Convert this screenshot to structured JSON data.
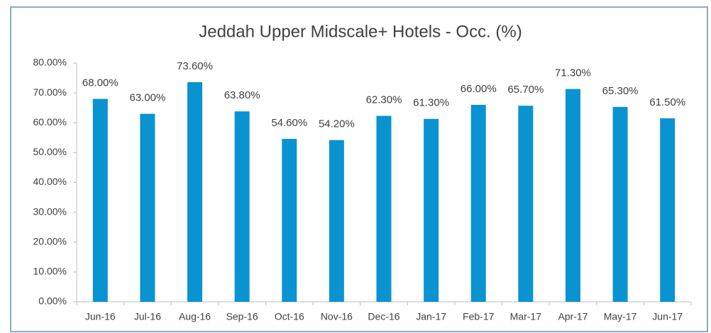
{
  "chart_data": {
    "type": "bar",
    "title": "Jeddah Upper Midscale+ Hotels  - Occ. (%)",
    "categories": [
      "Jun-16",
      "Jul-16",
      "Aug-16",
      "Sep-16",
      "Oct-16",
      "Nov-16",
      "Dec-16",
      "Jan-17",
      "Feb-17",
      "Mar-17",
      "Apr-17",
      "May-17",
      "Jun-17"
    ],
    "values": [
      68,
      63,
      73.6,
      63.8,
      54.6,
      54.2,
      62.3,
      61.3,
      66,
      65.7,
      71.3,
      65.3,
      61.5
    ],
    "value_labels": [
      "68.00%",
      "63.00%",
      "73.60%",
      "63.80%",
      "54.60%",
      "54.20%",
      "62.30%",
      "61.30%",
      "66.00%",
      "65.70%",
      "71.30%",
      "65.30%",
      "61.50%"
    ],
    "color": "#0a93d1",
    "ylim": [
      0,
      80
    ],
    "yticks": [
      {
        "value": 0,
        "label": "0.00%"
      },
      {
        "value": 10,
        "label": "10.00%"
      },
      {
        "value": 20,
        "label": "20.00%"
      },
      {
        "value": 30,
        "label": "30.00%"
      },
      {
        "value": 40,
        "label": "40.00%"
      },
      {
        "value": 50,
        "label": "50.00%"
      },
      {
        "value": 60,
        "label": "60.00%"
      },
      {
        "value": 70,
        "label": "70.00%"
      },
      {
        "value": 80,
        "label": "80.00%"
      }
    ],
    "grid": false
  }
}
